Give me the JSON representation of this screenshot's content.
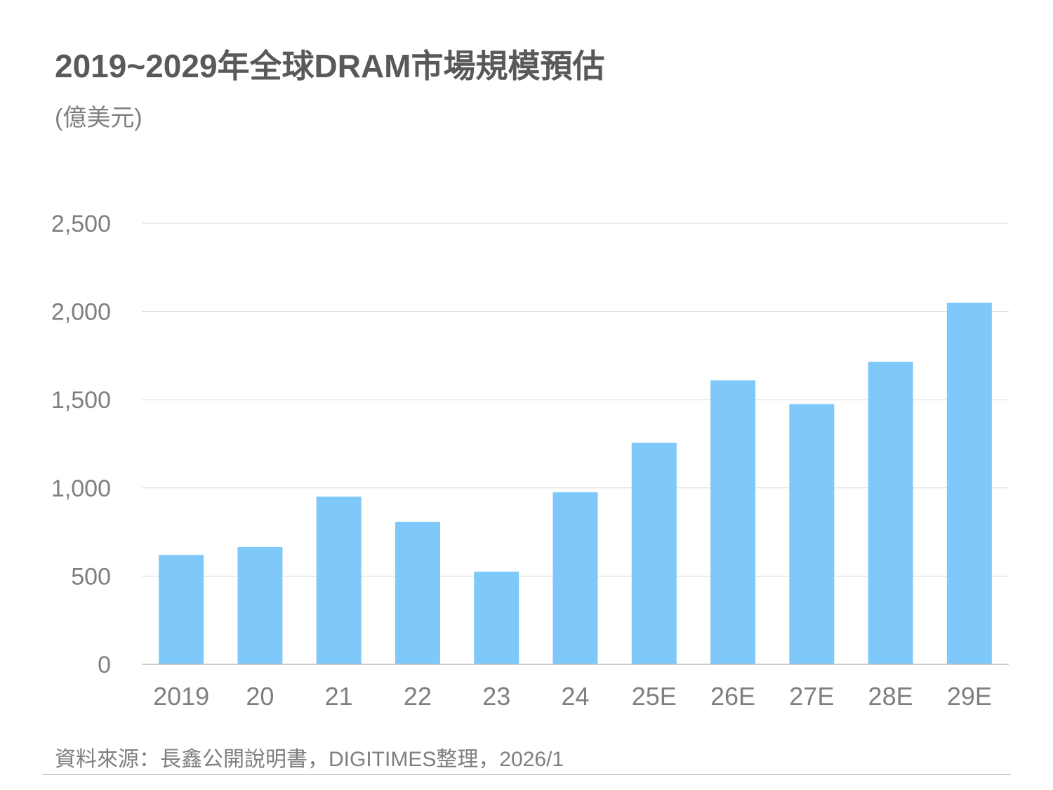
{
  "title": "2019~2029年全球DRAM市場規模預估",
  "unit_label": "(億美元)",
  "source": "資料來源：長鑫公開說明書，DIGITIMES整理，2026/1",
  "colors": {
    "bar": "#7fc8fa",
    "grid": "#d9d9d9",
    "axis": "#bfbfbf",
    "tick_text": "#7f7f7f",
    "title": "#595959"
  },
  "chart_data": {
    "type": "bar",
    "title": "2019~2029年全球DRAM市場規模預估",
    "ylabel": "(億美元)",
    "xlabel": "",
    "categories": [
      "2019",
      "20",
      "21",
      "22",
      "23",
      "24",
      "25E",
      "26E",
      "27E",
      "28E",
      "29E"
    ],
    "values": [
      620,
      665,
      950,
      808,
      525,
      975,
      1255,
      1610,
      1475,
      1715,
      2050
    ],
    "ylim": [
      0,
      2500
    ],
    "yticks": [
      0,
      500,
      1000,
      1500,
      2000,
      2500
    ],
    "ytick_labels": [
      "0",
      "500",
      "1,000",
      "1,500",
      "2,000",
      "2,500"
    ],
    "grid": true,
    "legend": "none"
  }
}
